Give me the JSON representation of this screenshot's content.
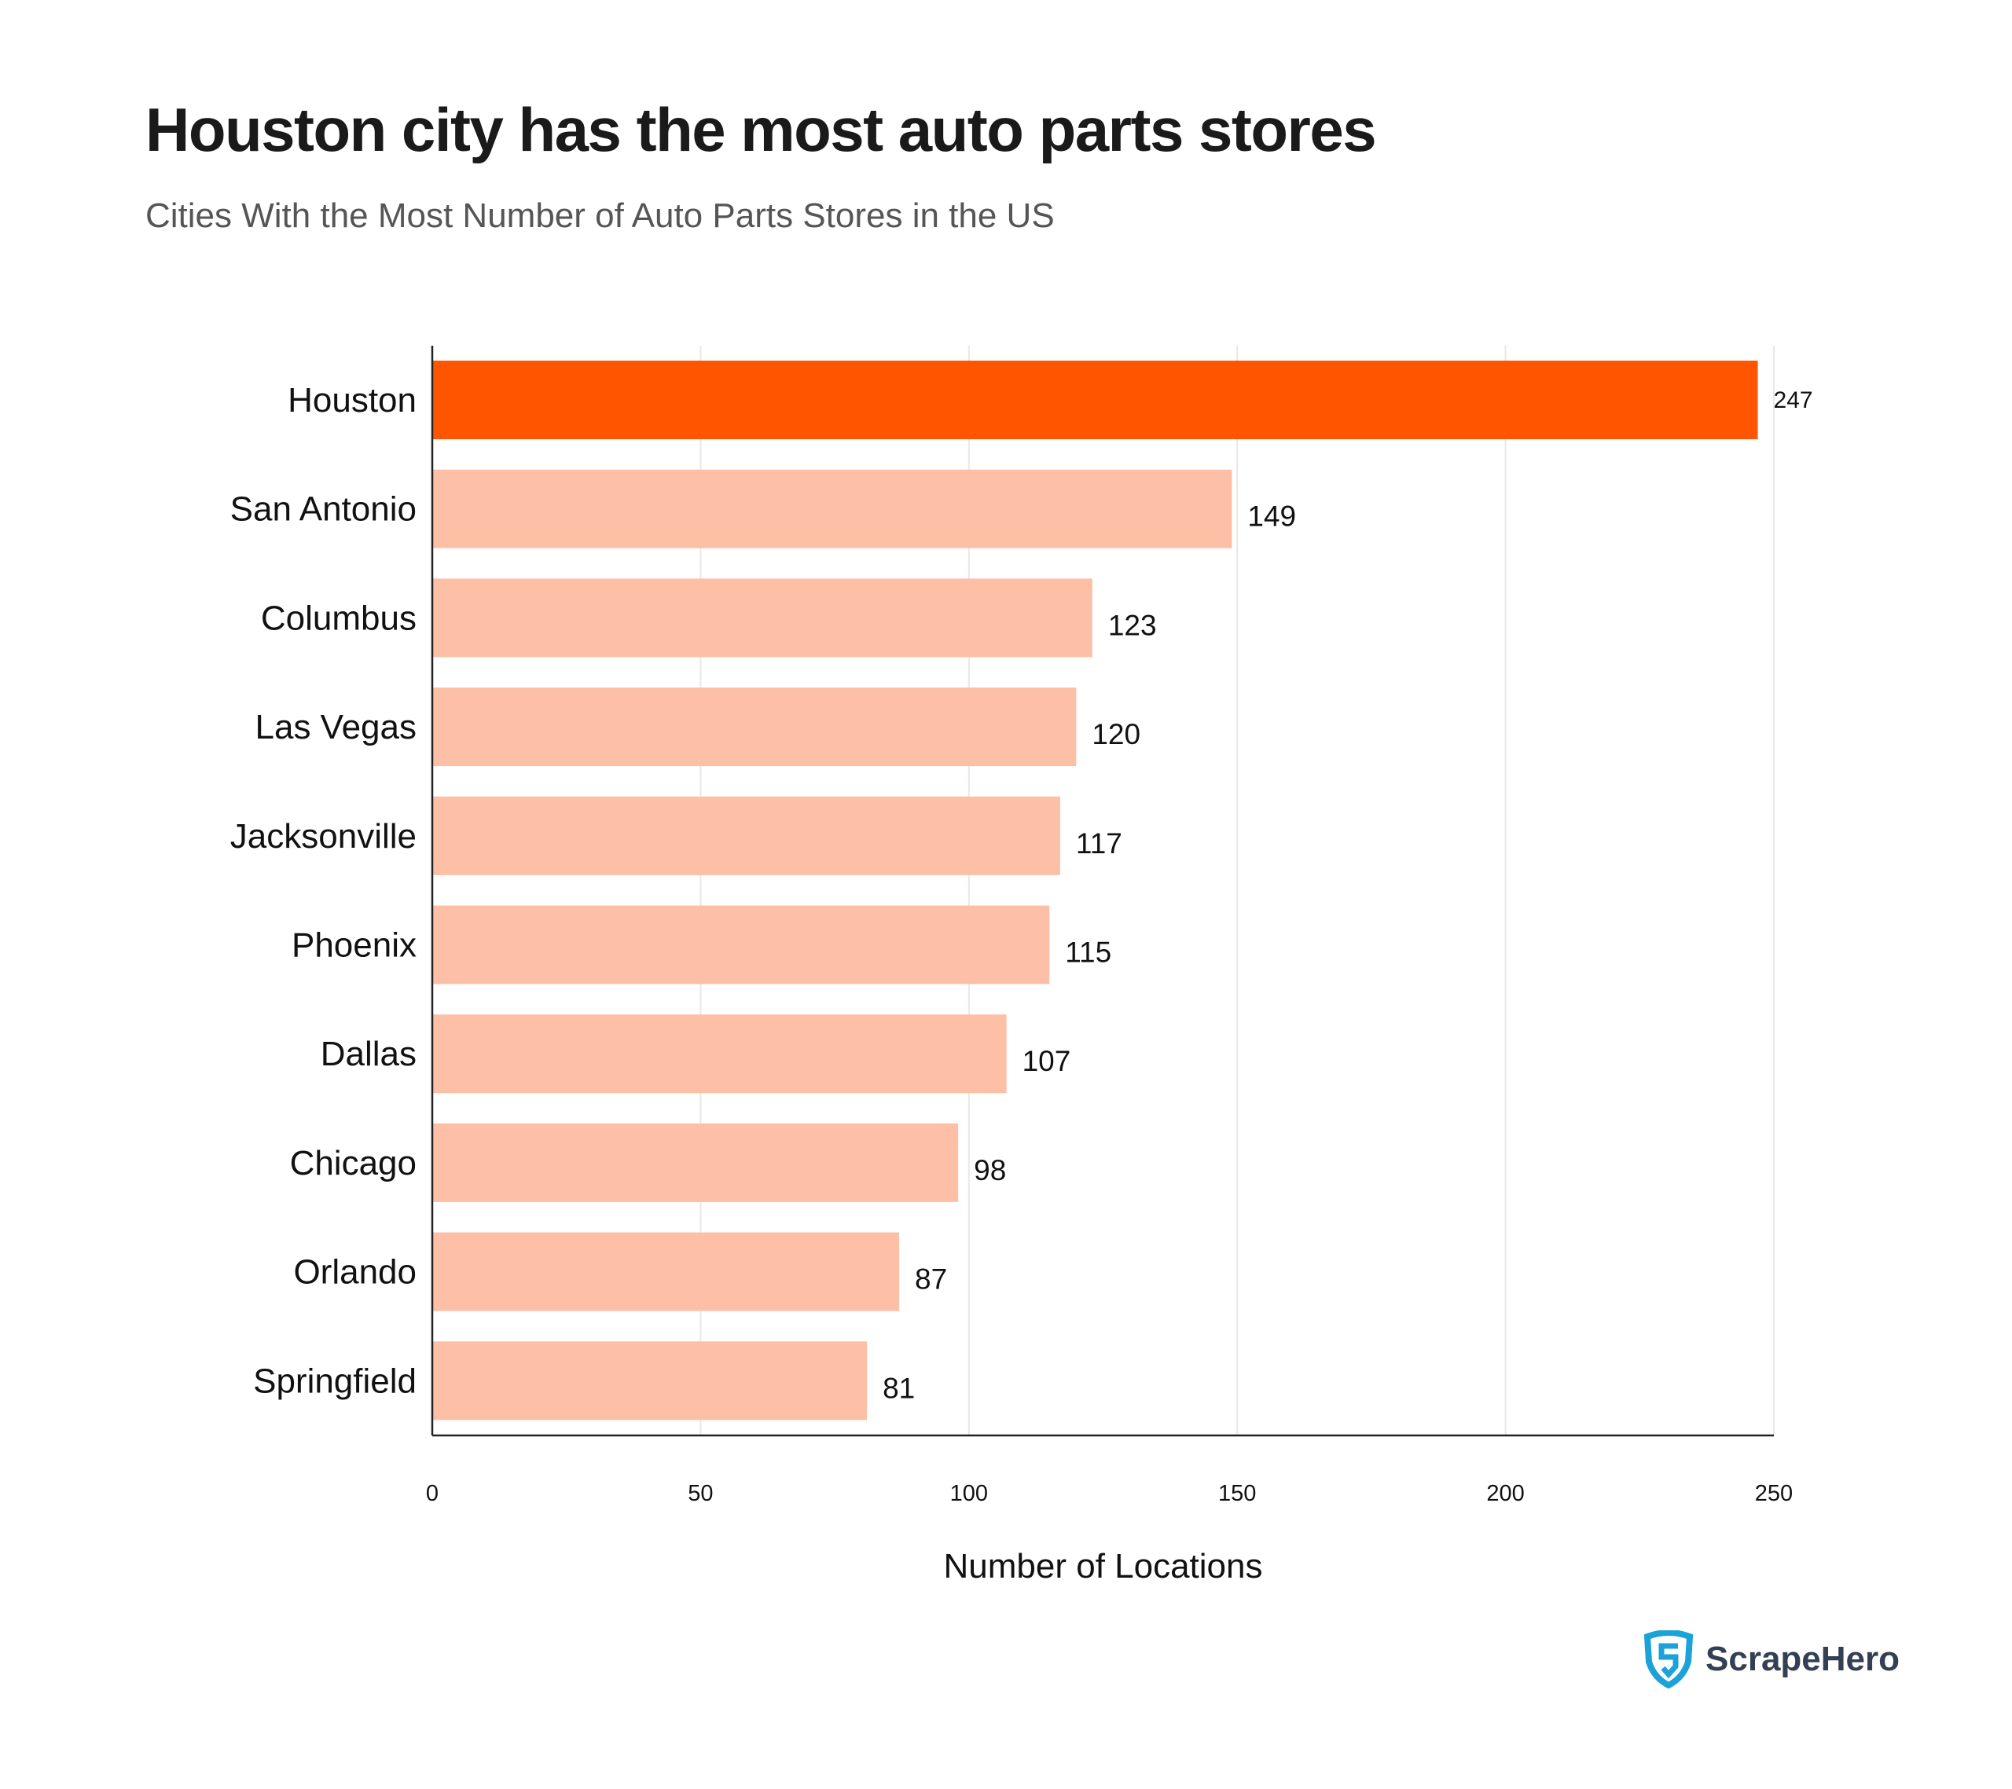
{
  "title": "Houston city has the most auto parts stores",
  "subtitle": "Cities With the Most Number of Auto Parts Stores in the US",
  "brand": "ScrapeHero",
  "colors": {
    "highlight": "#FF5500",
    "bar": "#FDBFA5",
    "logo": "#1BA3D9"
  },
  "chart_data": {
    "type": "bar",
    "orientation": "horizontal",
    "categories": [
      "Houston",
      "San Antonio",
      "Columbus",
      "Las Vegas",
      "Jacksonville",
      "Phoenix",
      "Dallas",
      "Chicago",
      "Orlando",
      "Springfield"
    ],
    "values": [
      247,
      149,
      123,
      120,
      117,
      115,
      107,
      98,
      87,
      81
    ],
    "highlighted": "Houston",
    "xlabel": "Number of Locations",
    "ylabel": "",
    "xlim": [
      0,
      250
    ],
    "xticks": [
      0,
      50,
      100,
      150,
      200,
      250
    ],
    "grid": "vertical",
    "data_labels": true
  }
}
